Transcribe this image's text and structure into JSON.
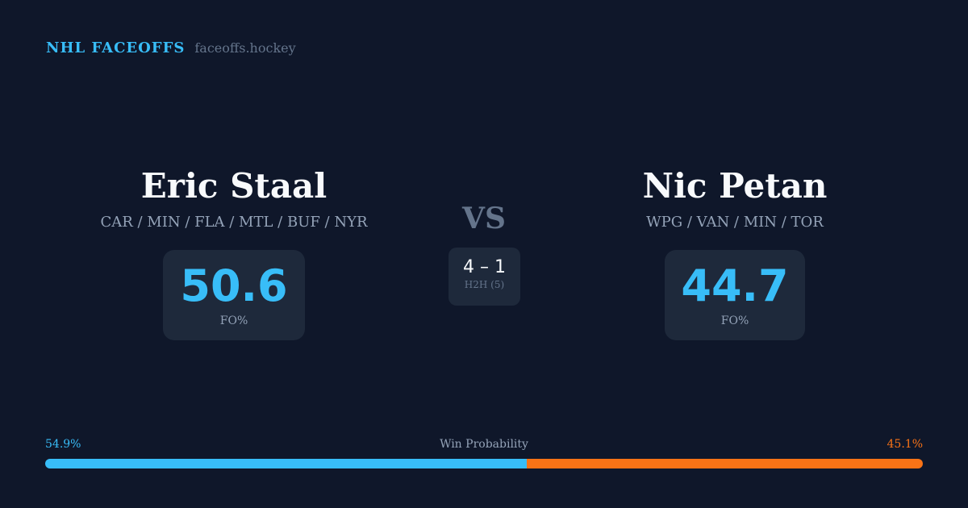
{
  "header": {
    "title": "NHL FACEOFFS",
    "url": "faceoffs.hockey"
  },
  "player1": {
    "name": "Eric Staal",
    "teams": "CAR / MIN / FLA / MTL / BUF / NYR",
    "fo_pct": "50.6",
    "fo_label": "FO%"
  },
  "player2": {
    "name": "Nic Petan",
    "teams": "WPG / VAN / MIN / TOR",
    "fo_pct": "44.7",
    "fo_label": "FO%"
  },
  "vs": "VS",
  "h2h": {
    "score": "4 – 1",
    "label": "H2H (5)"
  },
  "win_probability": {
    "label": "Win Probability",
    "left": "54.9%",
    "right": "45.1%",
    "left_value": 54.9,
    "right_value": 45.1,
    "left_color": "#38bdf8",
    "right_color": "#f97316"
  }
}
